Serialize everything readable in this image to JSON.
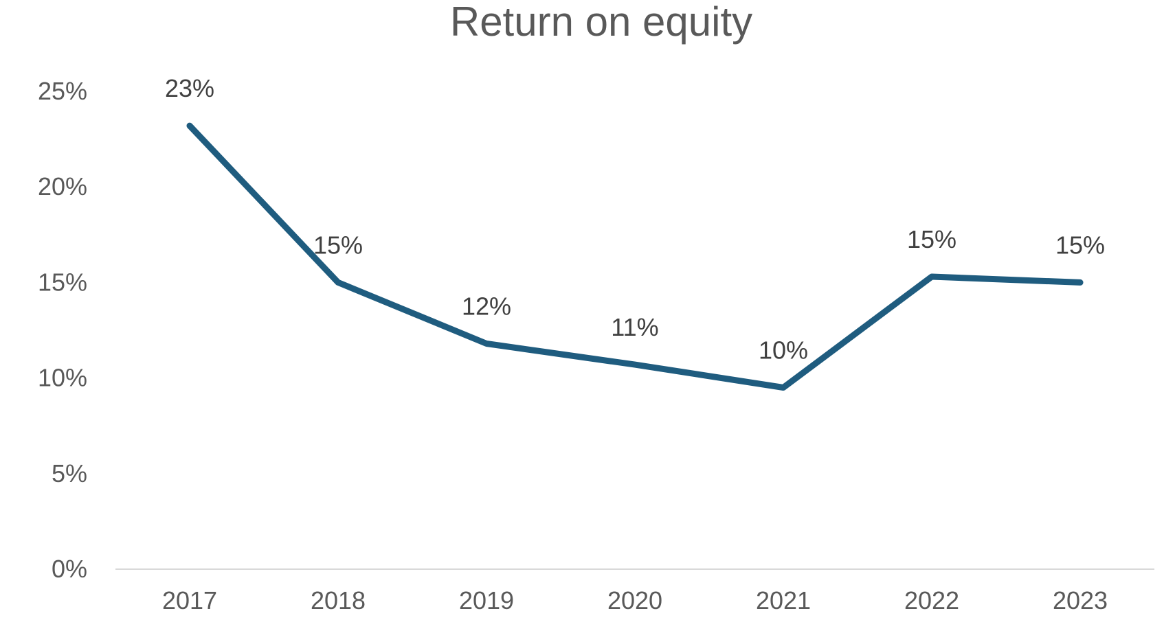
{
  "chart_data": {
    "type": "line",
    "title": "Return on equity",
    "xlabel": "",
    "ylabel": "",
    "categories": [
      "2017",
      "2018",
      "2019",
      "2020",
      "2021",
      "2022",
      "2023"
    ],
    "series": [
      {
        "values": [
          23.2,
          15.0,
          11.8,
          10.7,
          9.5,
          15.3,
          15.0
        ],
        "data_labels": [
          "23%",
          "15%",
          "12%",
          "11%",
          "10%",
          "15%",
          "15%"
        ],
        "color": "#1F5C7F"
      }
    ],
    "ylim": [
      0,
      25
    ],
    "yticks": [
      0,
      5,
      10,
      15,
      20,
      25
    ],
    "ytick_labels": [
      "0%",
      "5%",
      "10%",
      "15%",
      "20%",
      "25%"
    ],
    "grid": false,
    "legend": "none"
  },
  "colors": {
    "line": "#1F5C7F",
    "axis": "#D9D9D9",
    "text": "#595959",
    "data_label_text": "#404040"
  }
}
